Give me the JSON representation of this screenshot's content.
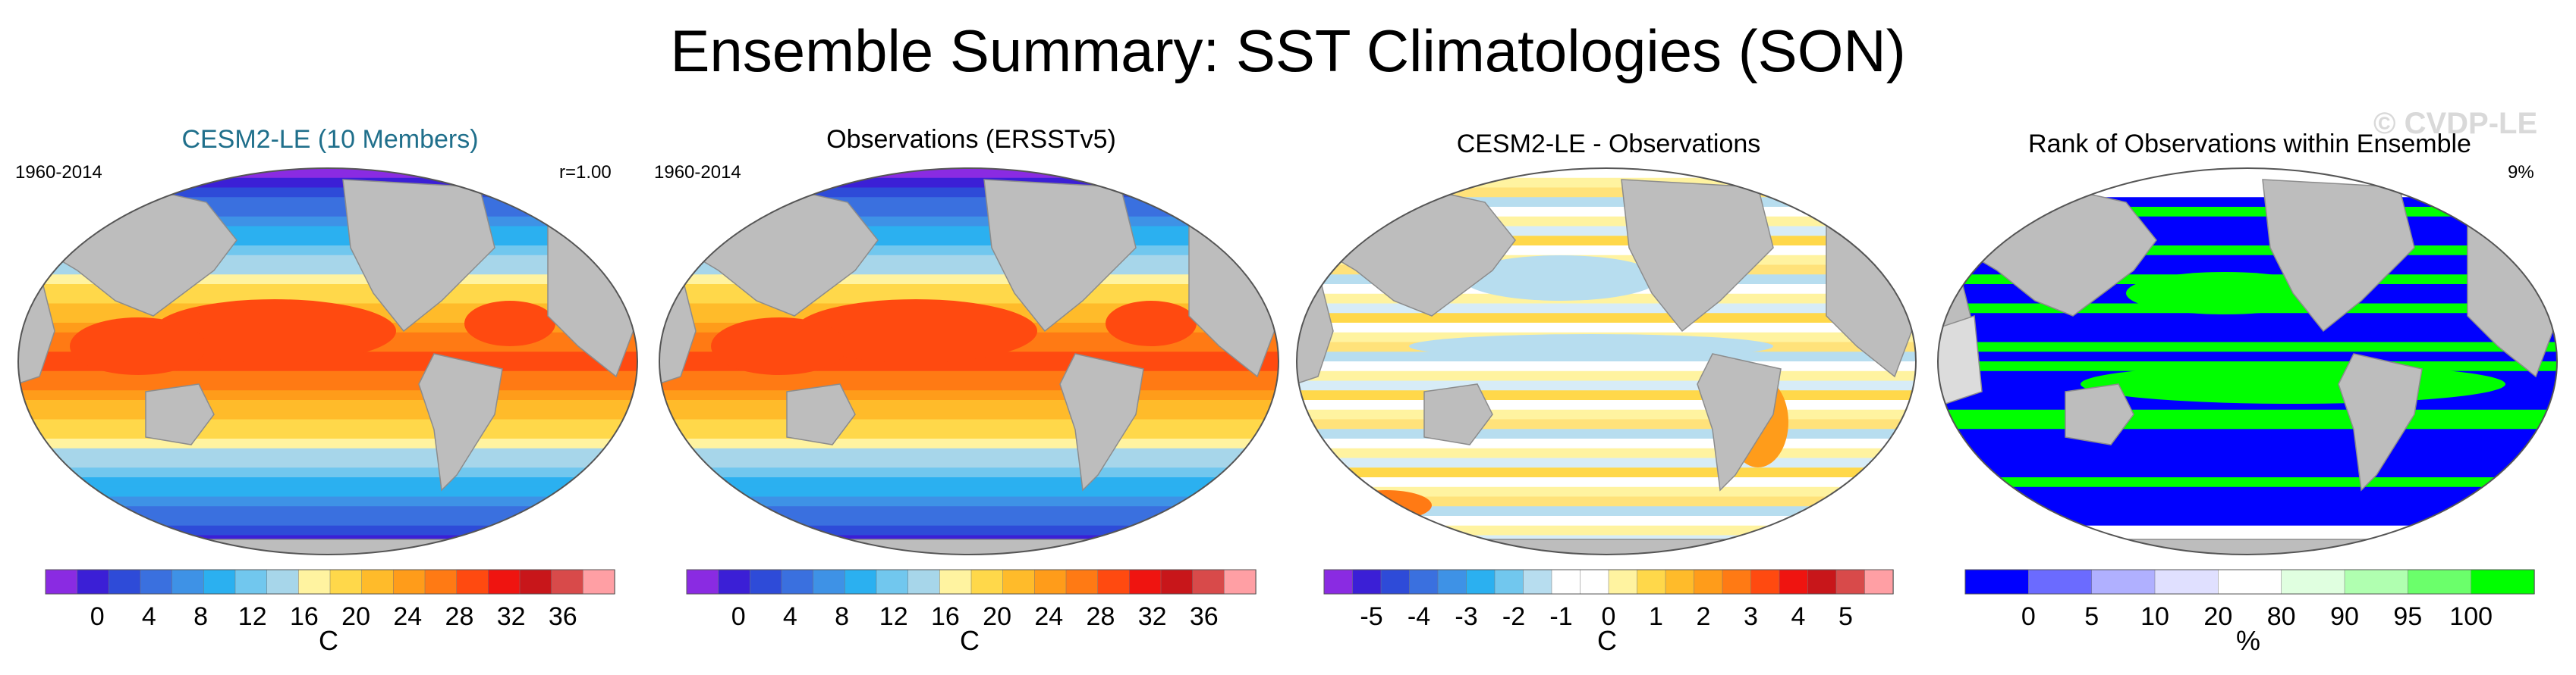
{
  "main_title": "Ensemble Summary: SST Climatologies (SON)",
  "watermark": "© CVDP-LE",
  "colors": {
    "land": "#bdbdbd",
    "title_teal": "#1f6f8b",
    "sst_scale": [
      "#8a2be2",
      "#3b1fd6",
      "#2e4bd8",
      "#3a70df",
      "#3e92e6",
      "#2bb0f0",
      "#71c7ee",
      "#a7d6ea",
      "#fff3a0",
      "#ffd84a",
      "#ffbb2a",
      "#ff9c1a",
      "#ff7a14",
      "#ff4a10",
      "#ef1410",
      "#c8161a",
      "#d84a4a",
      "#ff9fa4"
    ],
    "diff_scale": [
      "#8a2be2",
      "#3b1fd6",
      "#2e4bd8",
      "#3a70df",
      "#3e92e6",
      "#2bb0f0",
      "#71c7ee",
      "#b7ddef",
      "#ffffff",
      "#ffffff",
      "#fff3a0",
      "#ffd84a",
      "#ffbb2a",
      "#ff9c1a",
      "#ff7a14",
      "#ff4a10",
      "#ef1410",
      "#c8161a",
      "#d84a4a",
      "#ff9fa4"
    ],
    "rank_scale": [
      "#0000ff",
      "#6b6bff",
      "#b0b0ff",
      "#e0e0ff",
      "#ffffff",
      "#e0ffe0",
      "#b0ffb0",
      "#6bff6b",
      "#00ff00"
    ]
  },
  "panels": [
    {
      "title": "CESM2-LE (10 Members)",
      "left_label": "1960-2014",
      "right_label": "r=1.00",
      "type": "sst",
      "colorbar": {
        "unit": "C",
        "ticks": [
          "0",
          "4",
          "8",
          "12",
          "16",
          "20",
          "24",
          "28",
          "32",
          "36"
        ]
      }
    },
    {
      "title": "Observations (ERSSTv5)",
      "left_label": "1960-2014",
      "right_label": "",
      "type": "sst",
      "colorbar": {
        "unit": "C",
        "ticks": [
          "0",
          "4",
          "8",
          "12",
          "16",
          "20",
          "24",
          "28",
          "32",
          "36"
        ]
      }
    },
    {
      "title": "CESM2-LE - Observations",
      "left_label": "",
      "right_label": "",
      "type": "diff",
      "colorbar": {
        "unit": "C",
        "ticks": [
          "-5",
          "-4",
          "-3",
          "-2",
          "-1",
          "0",
          "1",
          "2",
          "3",
          "4",
          "5"
        ]
      }
    },
    {
      "title": "Rank of Observations within Ensemble",
      "left_label": "",
      "right_label": "9%",
      "type": "rank",
      "colorbar": {
        "unit": "%",
        "ticks": [
          "0",
          "5",
          "10",
          "20",
          "80",
          "90",
          "95",
          "100"
        ]
      }
    }
  ]
}
